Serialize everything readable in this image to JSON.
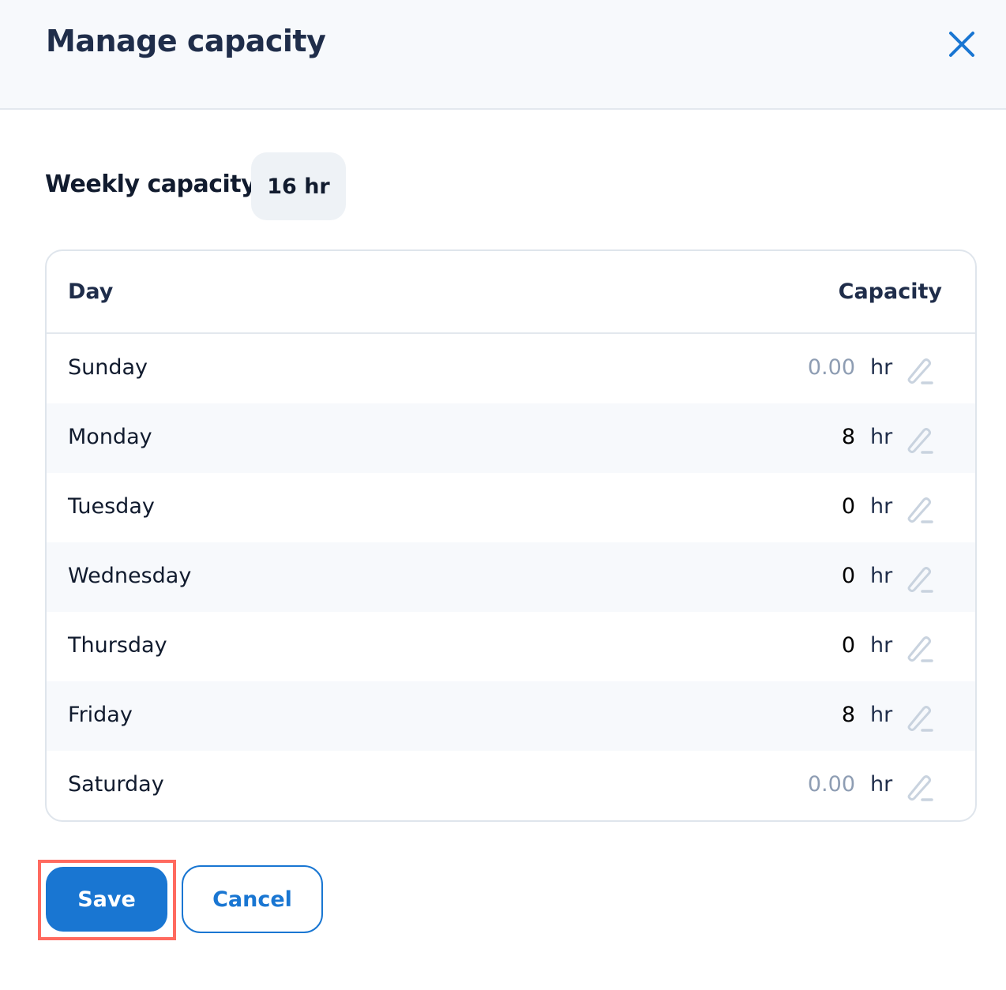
{
  "dialog": {
    "title": "Manage capacity",
    "close_icon": "close-icon"
  },
  "weekly": {
    "label": "Weekly capacity",
    "value": "16 hr"
  },
  "table": {
    "headers": {
      "day": "Day",
      "capacity": "Capacity"
    },
    "rows": [
      {
        "day": "Sunday",
        "value": "0.00",
        "placeholder": true,
        "unit": "hr"
      },
      {
        "day": "Monday",
        "value": "8",
        "placeholder": false,
        "unit": "hr"
      },
      {
        "day": "Tuesday",
        "value": "0",
        "placeholder": false,
        "unit": "hr"
      },
      {
        "day": "Wednesday",
        "value": "0",
        "placeholder": false,
        "unit": "hr"
      },
      {
        "day": "Thursday",
        "value": "0",
        "placeholder": false,
        "unit": "hr"
      },
      {
        "day": "Friday",
        "value": "8",
        "placeholder": false,
        "unit": "hr"
      },
      {
        "day": "Saturday",
        "value": "0.00",
        "placeholder": true,
        "unit": "hr"
      }
    ]
  },
  "actions": {
    "save": "Save",
    "cancel": "Cancel"
  },
  "colors": {
    "accent": "#1976d2",
    "highlight": "#ff6a5f"
  }
}
